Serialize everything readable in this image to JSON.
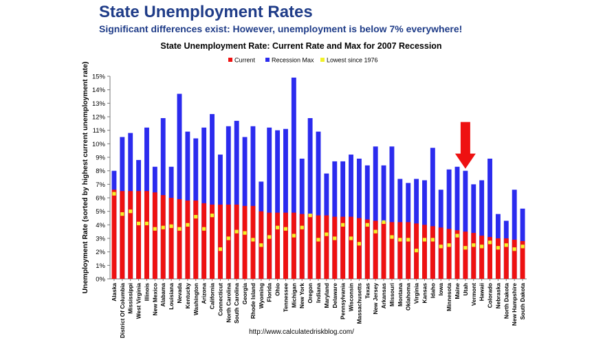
{
  "slide": {
    "title": "State Unemployment Rates",
    "subtitle": "Significant differences exist: However, unemployment is below 7% everywhere!"
  },
  "source": "http://www.calculatedriskblog.com/",
  "colors": {
    "current": "#ee1111",
    "recession_max": "#2b2bee",
    "lowest": "#f2f22a",
    "arrow": "#ee1111",
    "title": "#1f3c88"
  },
  "chart_data": {
    "type": "bar",
    "title": "State Unemployment Rate: Current Rate and Max for 2007 Recession",
    "ylabel": "Unemployment Rate (sorted by highest current unemployment rate)",
    "xlabel": "",
    "ylim": [
      0,
      15
    ],
    "yticks": [
      "0%",
      "1%",
      "2%",
      "3%",
      "4%",
      "5%",
      "6%",
      "7%",
      "8%",
      "9%",
      "10%",
      "11%",
      "12%",
      "13%",
      "14%",
      "15%"
    ],
    "grid": false,
    "legend_position": "top",
    "legend": [
      "Current",
      "Recession Max",
      "Lowest since 1976"
    ],
    "highlight": {
      "category": "Utah",
      "marker": "red arrow pointing down"
    },
    "categories": [
      "Alaska",
      "District Of Columbia",
      "Mississippi",
      "West Virginia",
      "Illinois",
      "New Mexico",
      "Alabama",
      "Louisiana",
      "Nevada",
      "Kentucky",
      "Washington",
      "Arizona",
      "California",
      "Connecticut",
      "North Carolina",
      "South Carolina",
      "Georgia",
      "Rhode Island",
      "Wyoming",
      "Florida",
      "Ohio",
      "Tennessee",
      "Michigan",
      "New York",
      "Oregon",
      "Indiana",
      "Maryland",
      "Delaware",
      "Pennsylvania",
      "Wisconsin",
      "Massachusetts",
      "Texas",
      "New Jersey",
      "Arkansas",
      "Missouri",
      "Montana",
      "Oklahoma",
      "Virginia",
      "Kansas",
      "Idaho",
      "Iowa",
      "Minnesota",
      "Maine",
      "Utah",
      "Vermont",
      "Hawaii",
      "Colorado",
      "Nebraska",
      "North Dakota",
      "New Hampshire",
      "South Dakota"
    ],
    "series": [
      {
        "name": "Current",
        "values": [
          6.6,
          6.5,
          6.5,
          6.5,
          6.5,
          6.4,
          6.2,
          6.0,
          5.9,
          5.8,
          5.8,
          5.6,
          5.5,
          5.5,
          5.5,
          5.5,
          5.4,
          5.4,
          5.0,
          4.9,
          4.9,
          4.9,
          4.9,
          4.8,
          4.8,
          4.7,
          4.7,
          4.6,
          4.6,
          4.6,
          4.5,
          4.4,
          4.3,
          4.2,
          4.2,
          4.2,
          4.2,
          4.1,
          4.0,
          3.9,
          3.8,
          3.7,
          3.6,
          3.5,
          3.4,
          3.2,
          3.1,
          3.0,
          3.0,
          2.9,
          2.8
        ]
      },
      {
        "name": "Recession Max",
        "values": [
          8.0,
          10.5,
          10.8,
          8.8,
          11.2,
          8.3,
          11.9,
          8.3,
          13.7,
          10.9,
          10.4,
          11.2,
          12.2,
          9.2,
          11.3,
          11.7,
          10.5,
          11.3,
          7.2,
          11.2,
          11.0,
          11.1,
          14.9,
          8.9,
          11.9,
          10.9,
          7.8,
          8.7,
          8.7,
          9.2,
          8.9,
          8.4,
          9.8,
          8.4,
          9.8,
          7.4,
          7.1,
          7.4,
          7.3,
          9.7,
          6.6,
          8.1,
          8.3,
          8.0,
          7.0,
          7.3,
          8.9,
          4.8,
          4.3,
          6.6,
          5.2
        ]
      },
      {
        "name": "Lowest since 1976",
        "values": [
          6.3,
          4.8,
          5.0,
          4.1,
          4.1,
          3.7,
          3.8,
          3.9,
          3.7,
          4.0,
          4.6,
          3.7,
          4.7,
          2.2,
          3.0,
          3.5,
          3.4,
          2.9,
          2.5,
          3.1,
          3.8,
          3.7,
          3.2,
          3.8,
          4.7,
          2.9,
          3.3,
          3.0,
          4.0,
          3.0,
          2.6,
          4.0,
          3.5,
          4.2,
          3.1,
          2.9,
          2.9,
          2.1,
          2.9,
          2.9,
          2.4,
          2.5,
          3.2,
          2.3,
          2.5,
          2.4,
          2.7,
          2.3,
          2.5,
          2.2,
          2.4
        ]
      }
    ]
  }
}
